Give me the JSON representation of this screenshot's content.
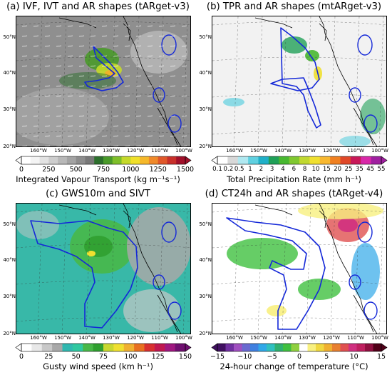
{
  "panels": [
    {
      "id": "a",
      "title": "(a) IVF, IVT and AR shapes (tARget-v3)",
      "lat_labels": [
        "50°N",
        "40°N",
        "30°N",
        "20°N"
      ],
      "lon_labels": [
        "160°W",
        "150°W",
        "140°W",
        "130°W",
        "120°W",
        "110°W",
        "100°W"
      ],
      "colorbar": {
        "ticks": [
          "0",
          "250",
          "500",
          "750",
          "1000",
          "1250",
          "1500"
        ],
        "label": "Integrated Vapour Transport (kg m⁻¹s⁻¹)",
        "colors": [
          "#ffffff",
          "#f4f4f4",
          "#e2e2e2",
          "#cdcdcd",
          "#b8b8b8",
          "#a3a3a3",
          "#8d8d8d",
          "#787878",
          "#2c6f2c",
          "#4a9a2a",
          "#7fbf2a",
          "#c5d92a",
          "#f0e02a",
          "#f5b82a",
          "#f08a2a",
          "#e0582a",
          "#c8302a",
          "#a0102a"
        ]
      },
      "background": "#8f8f8f"
    },
    {
      "id": "b",
      "title": "(b) TPR and AR shapes (mtARget-v3)",
      "lat_labels": [
        "50°N",
        "40°N",
        "30°N",
        "20°N"
      ],
      "lon_labels": [
        "160°W",
        "150°W",
        "140°W",
        "130°W",
        "120°W",
        "110°W",
        "100°W"
      ],
      "colorbar": {
        "ticks": [
          "0.1",
          "0.2",
          "0.5",
          "1",
          "2",
          "3",
          "4",
          "6",
          "8",
          "10",
          "15",
          "20",
          "25",
          "35",
          "45",
          "55"
        ],
        "label": "Total Precipitation Rate (mm h⁻¹)",
        "colors": [
          "#ffffff",
          "#d8d8d8",
          "#b0e8f0",
          "#60d0e0",
          "#20b0c8",
          "#20a058",
          "#48b830",
          "#80c830",
          "#c0d830",
          "#f0e030",
          "#f8b830",
          "#f08020",
          "#e04828",
          "#c81858",
          "#d828a8",
          "#a020a0"
        ]
      },
      "background": "#f2f2f2"
    },
    {
      "id": "c",
      "title": "(c) GWS10m and SIVT",
      "lat_labels": [
        "50°N",
        "40°N",
        "30°N",
        "20°N"
      ],
      "lon_labels": [
        "160°W",
        "150°W",
        "140°W",
        "130°W",
        "120°W",
        "110°W",
        "100°W"
      ],
      "colorbar": {
        "ticks": [
          "0",
          "25",
          "50",
          "75",
          "100",
          "125",
          "150"
        ],
        "label": "Gusty wind speed (km h⁻¹)",
        "colors": [
          "#ffffff",
          "#e8e8e8",
          "#c8c8c8",
          "#a8a8a8",
          "#30b8b0",
          "#30c8a0",
          "#48b848",
          "#30a030",
          "#c8d830",
          "#f0e030",
          "#f0b030",
          "#e87020",
          "#d83030",
          "#c01850",
          "#a01880",
          "#701070"
        ]
      },
      "background": "#38b8a8"
    },
    {
      "id": "d",
      "title": "(d) CT24h and AR shapes (tARget-v4)",
      "lat_labels": [
        "50°N",
        "40°N",
        "30°N",
        "20°N"
      ],
      "lon_labels": [
        "160°W",
        "150°W",
        "140°W",
        "130°W",
        "120°W",
        "110°W",
        "100°W"
      ],
      "colorbar": {
        "ticks": [
          "−15",
          "−10",
          "−5",
          "0",
          "5",
          "10",
          "15"
        ],
        "label": "24-hour change of temperature (°C)",
        "colors": [
          "#401060",
          "#7030a0",
          "#a050c0",
          "#6a6ad0",
          "#4080e0",
          "#30a8e8",
          "#30c0c0",
          "#30b070",
          "#40c040",
          "#90d040",
          "#ffffff",
          "#f8f080",
          "#f0d840",
          "#f0b030",
          "#e88030",
          "#e05050",
          "#d03080",
          "#c02060",
          "#901040",
          "#500018"
        ]
      },
      "background": "#ffffff"
    }
  ]
}
